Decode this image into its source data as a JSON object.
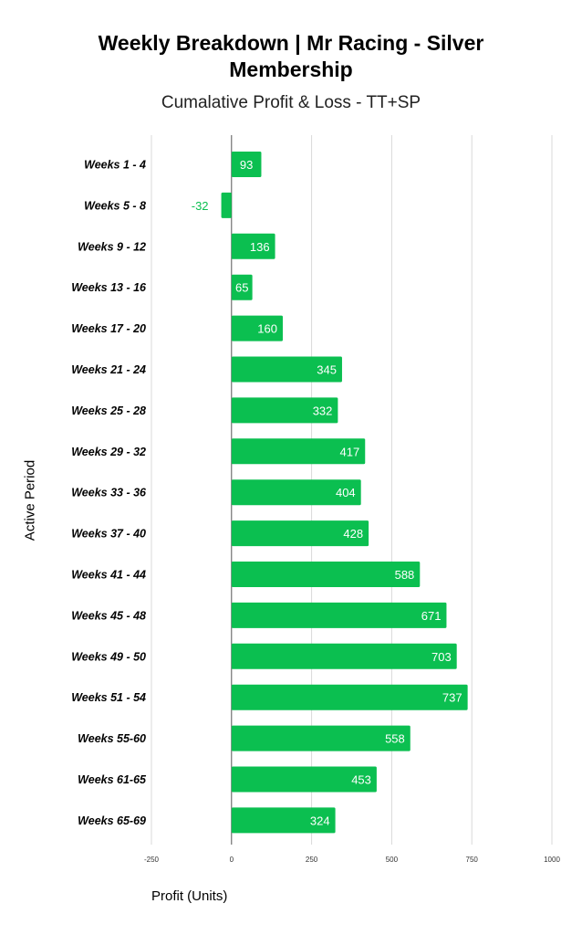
{
  "chart_data": {
    "type": "bar",
    "orientation": "horizontal",
    "title_lines": [
      "Weekly Breakdown | Mr Racing - Silver",
      "Membership"
    ],
    "subtitle": "Cumalative Profit & Loss - TT+SP",
    "xlabel": "Profit (Units)",
    "ylabel": "Active Period",
    "xlim": [
      -250,
      1000
    ],
    "xticks": [
      -250,
      0,
      250,
      500,
      750,
      1000
    ],
    "grid": true,
    "legend": "none",
    "bar_color": "#0bbf50",
    "categories": [
      "Weeks 1 - 4",
      "Weeks 5 - 8",
      "Weeks 9 - 12",
      "Weeks 13 - 16",
      "Weeks 17 - 20",
      "Weeks 21 - 24",
      "Weeks 25 - 28",
      "Weeks 29 - 32",
      "Weeks 33 - 36",
      "Weeks 37 - 40",
      "Weeks 41 - 44",
      "Weeks 45 - 48",
      "Weeks 49 - 50",
      "Weeks 51 - 54",
      "Weeks 55-60",
      "Weeks 61-65",
      "Weeks 65-69"
    ],
    "values": [
      93,
      -32,
      136,
      65,
      160,
      345,
      332,
      417,
      404,
      428,
      588,
      671,
      703,
      737,
      558,
      453,
      324
    ]
  }
}
